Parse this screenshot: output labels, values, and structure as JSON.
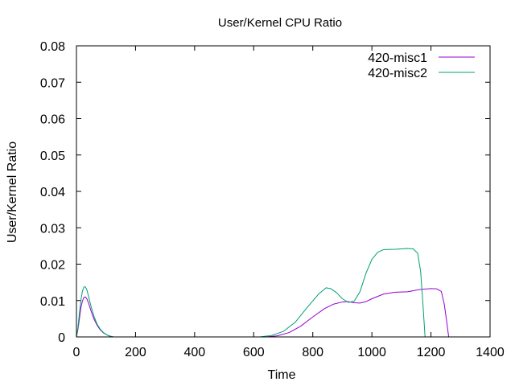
{
  "chart_data": {
    "type": "line",
    "title": "User/Kernel CPU Ratio",
    "xlabel": "Time",
    "ylabel": "User/Kernel Ratio",
    "xlim": [
      0,
      1400
    ],
    "ylim": [
      0,
      0.08
    ],
    "x_ticks": [
      0,
      200,
      400,
      600,
      800,
      1000,
      1200,
      1400
    ],
    "y_ticks": [
      0,
      0.01,
      0.02,
      0.03,
      0.04,
      0.05,
      0.06,
      0.07,
      0.08
    ],
    "x_tick_labels": [
      "0",
      "200",
      "400",
      "600",
      "800",
      "1000",
      "1200",
      "1400"
    ],
    "y_tick_labels": [
      "0",
      "0.01",
      "0.02",
      "0.03",
      "0.04",
      "0.05",
      "0.06",
      "0.07",
      "0.08"
    ],
    "grid": false,
    "legend_position": "top-right",
    "series": [
      {
        "name": "420-misc1",
        "color": "#9400d3",
        "points": [
          [
            0,
            0
          ],
          [
            5,
            0.002
          ],
          [
            10,
            0.005
          ],
          [
            15,
            0.008
          ],
          [
            20,
            0.0098
          ],
          [
            25,
            0.0108
          ],
          [
            30,
            0.011
          ],
          [
            35,
            0.0105
          ],
          [
            40,
            0.0095
          ],
          [
            45,
            0.0083
          ],
          [
            50,
            0.007
          ],
          [
            60,
            0.0048
          ],
          [
            70,
            0.0032
          ],
          [
            80,
            0.002
          ],
          [
            90,
            0.0012
          ],
          [
            100,
            0.0007
          ],
          [
            110,
            0.0003
          ],
          [
            120,
            0.0001
          ],
          [
            125,
            0
          ],
          [
            640,
            0
          ],
          [
            680,
            0.0003
          ],
          [
            720,
            0.0012
          ],
          [
            760,
            0.003
          ],
          [
            800,
            0.0055
          ],
          [
            840,
            0.0078
          ],
          [
            870,
            0.009
          ],
          [
            900,
            0.0096
          ],
          [
            920,
            0.0097
          ],
          [
            940,
            0.0094
          ],
          [
            960,
            0.0093
          ],
          [
            980,
            0.0097
          ],
          [
            1000,
            0.0105
          ],
          [
            1040,
            0.0118
          ],
          [
            1080,
            0.0123
          ],
          [
            1120,
            0.0124
          ],
          [
            1160,
            0.013
          ],
          [
            1200,
            0.0133
          ],
          [
            1220,
            0.0132
          ],
          [
            1235,
            0.0125
          ],
          [
            1245,
            0.009
          ],
          [
            1252,
            0.005
          ],
          [
            1260,
            0
          ]
        ]
      },
      {
        "name": "420-misc2",
        "color": "#009e73",
        "points": [
          [
            0,
            0
          ],
          [
            5,
            0.0025
          ],
          [
            10,
            0.0065
          ],
          [
            15,
            0.01
          ],
          [
            20,
            0.0125
          ],
          [
            25,
            0.0137
          ],
          [
            30,
            0.0138
          ],
          [
            35,
            0.013
          ],
          [
            40,
            0.0115
          ],
          [
            45,
            0.0098
          ],
          [
            50,
            0.0082
          ],
          [
            60,
            0.0055
          ],
          [
            70,
            0.0035
          ],
          [
            80,
            0.0022
          ],
          [
            90,
            0.0013
          ],
          [
            100,
            0.0007
          ],
          [
            110,
            0.0003
          ],
          [
            120,
            0.0001
          ],
          [
            125,
            0
          ],
          [
            620,
            0
          ],
          [
            660,
            0.0004
          ],
          [
            700,
            0.0015
          ],
          [
            740,
            0.004
          ],
          [
            780,
            0.008
          ],
          [
            820,
            0.0118
          ],
          [
            845,
            0.0135
          ],
          [
            860,
            0.0133
          ],
          [
            880,
            0.0122
          ],
          [
            900,
            0.0105
          ],
          [
            920,
            0.0095
          ],
          [
            940,
            0.0098
          ],
          [
            960,
            0.0125
          ],
          [
            980,
            0.0175
          ],
          [
            1000,
            0.0213
          ],
          [
            1020,
            0.0233
          ],
          [
            1040,
            0.024
          ],
          [
            1080,
            0.0241
          ],
          [
            1120,
            0.0243
          ],
          [
            1140,
            0.0242
          ],
          [
            1155,
            0.023
          ],
          [
            1165,
            0.018
          ],
          [
            1172,
            0.01
          ],
          [
            1180,
            0
          ]
        ]
      }
    ]
  }
}
